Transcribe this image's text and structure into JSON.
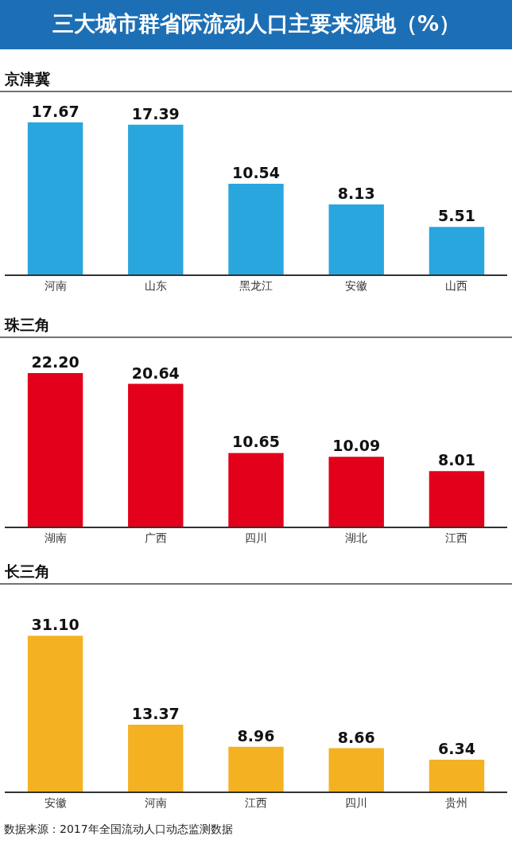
{
  "chart_data": [
    {
      "type": "bar",
      "title": "三大城市群省际流动人口主要来源地（%）",
      "subtitle": "京津冀",
      "categories": [
        "河南",
        "山东",
        "黑龙江",
        "安徽",
        "山西"
      ],
      "values": [
        17.67,
        17.39,
        10.54,
        8.13,
        5.51
      ],
      "color": "#29a6de",
      "value_labels": [
        "17.67",
        "17.39",
        "10.54",
        "8.13",
        "5.51"
      ]
    },
    {
      "type": "bar",
      "subtitle": "珠三角",
      "categories": [
        "湖南",
        "广西",
        "四川",
        "湖北",
        "江西"
      ],
      "values": [
        22.2,
        20.64,
        10.65,
        10.09,
        8.01
      ],
      "color": "#e2001a",
      "value_labels": [
        "22.20",
        "20.64",
        "10.65",
        "10.09",
        "8.01"
      ]
    },
    {
      "type": "bar",
      "subtitle": "长三角",
      "categories": [
        "安徽",
        "河南",
        "江西",
        "四川",
        "贵州"
      ],
      "values": [
        31.1,
        13.37,
        8.96,
        8.66,
        6.34
      ],
      "color": "#f4b223",
      "value_labels": [
        "31.10",
        "13.37",
        "8.96",
        "8.66",
        "6.34"
      ],
      "annotations": [
        "数据来源：2017年全国流动人口动态监测数据"
      ]
    }
  ]
}
